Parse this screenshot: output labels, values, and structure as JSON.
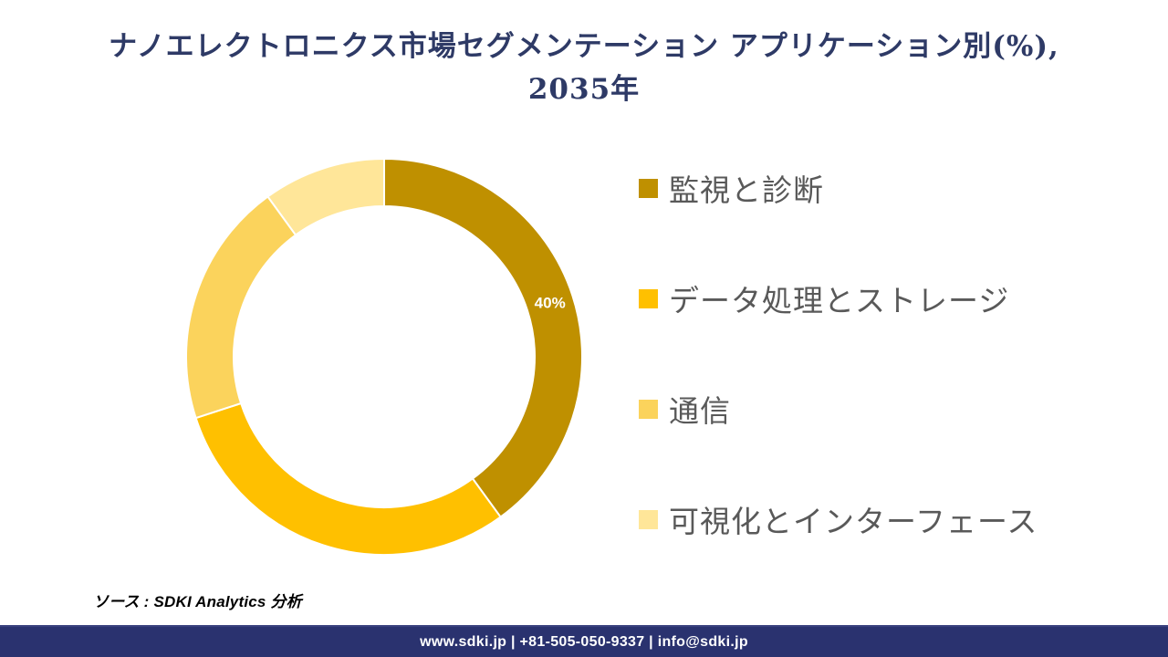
{
  "header": {
    "title_line1": "ナノエレクトロニクス市場セグメンテーション アプリケーション別(%),",
    "title_line2": "2035年",
    "title_color": "#2E3A66"
  },
  "chart_data": {
    "type": "pie",
    "subtype": "donut",
    "title": "ナノエレクトロニクス市場セグメンテーション アプリケーション別(%), 2035年",
    "unit": "%",
    "categories": [
      "監視と診断",
      "データ処理とストレージ",
      "通信",
      "可視化とインターフェース"
    ],
    "values": [
      40,
      30,
      20,
      10
    ],
    "colors": [
      "#BF9000",
      "#FFC000",
      "#FBD35C",
      "#FFE699"
    ],
    "data_labels": [
      "40%",
      "",
      "",
      ""
    ],
    "data_label_color": "#FFFFFF",
    "start_angle_deg": 0,
    "direction": "clockwise",
    "inner_radius_ratio": 0.76,
    "separator_color": "#FFFFFF",
    "legend_position": "right",
    "legend_text_color": "#595959",
    "grid": false
  },
  "source": {
    "text": "ソース : SDKI Analytics 分析"
  },
  "footer": {
    "text": "www.sdki.jp | +81-505-050-9337 | info@sdki.jp",
    "background": "#2A326F",
    "text_color": "#FFFFFF"
  }
}
